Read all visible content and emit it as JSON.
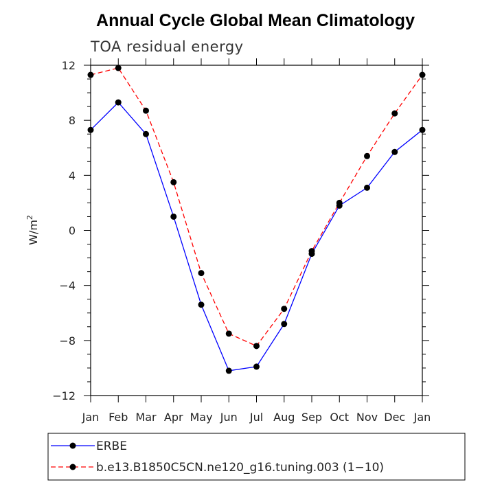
{
  "chart_data": {
    "type": "line",
    "title": "Annual Cycle Global Mean Climatology",
    "subtitle": "TOA residual energy",
    "ylabel_base": "W/m",
    "ylabel_sup": "2",
    "xlabel": "",
    "categories": [
      "Jan",
      "Feb",
      "Mar",
      "Apr",
      "May",
      "Jun",
      "Jul",
      "Aug",
      "Sep",
      "Oct",
      "Nov",
      "Dec",
      "Jan"
    ],
    "ylim": [
      -12,
      12
    ],
    "yticks": [
      "12",
      "8",
      "4",
      "0",
      "−4",
      "−8",
      "−12"
    ],
    "grid": false,
    "legend_position": "bottom",
    "series": [
      {
        "name": "ERBE",
        "color": "#0000ff",
        "dash": "solid",
        "values": [
          7.3,
          9.3,
          7.0,
          1.0,
          -5.4,
          -10.2,
          -9.9,
          -6.8,
          -1.7,
          1.8,
          3.1,
          5.7,
          7.3
        ]
      },
      {
        "name": "b.e13.B1850C5CN.ne120_g16.tuning.003 (1−10)",
        "color": "#ff0000",
        "dash": "dashed",
        "values": [
          11.3,
          11.8,
          8.7,
          3.5,
          -3.1,
          -7.5,
          -8.4,
          -5.7,
          -1.5,
          2.0,
          5.4,
          8.5,
          11.3
        ]
      }
    ]
  }
}
